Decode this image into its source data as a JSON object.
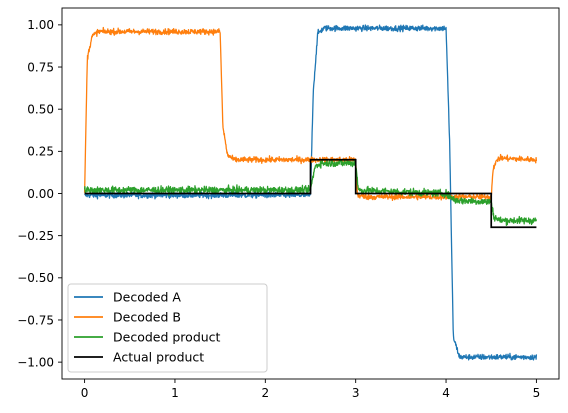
{
  "chart_data": {
    "type": "line",
    "title": "",
    "xlabel": "",
    "ylabel": "",
    "xlim": [
      -0.25,
      5.25
    ],
    "ylim": [
      -1.1,
      1.1
    ],
    "xticks": [
      0,
      1,
      2,
      3,
      4,
      5
    ],
    "xtick_labels": [
      "0",
      "1",
      "2",
      "3",
      "4",
      "5"
    ],
    "yticks": [
      1.0,
      0.75,
      0.5,
      0.25,
      0.0,
      -0.25,
      -0.5,
      -0.75,
      -1.0
    ],
    "ytick_labels": [
      "1.00",
      "0.75",
      "0.50",
      "0.25",
      "0.00",
      "−0.25",
      "−0.50",
      "−0.75",
      "−1.00"
    ],
    "grid": false,
    "legend_position": "lower-left",
    "series": [
      {
        "name": "Decoded A",
        "color": "#1f77b4",
        "noise": 0.012,
        "points": [
          [
            0,
            -0.01
          ],
          [
            2.5,
            -0.01
          ],
          [
            2.53,
            0.6
          ],
          [
            2.58,
            0.95
          ],
          [
            2.65,
            0.98
          ],
          [
            4.0,
            0.98
          ],
          [
            4.04,
            0.3
          ],
          [
            4.08,
            -0.85
          ],
          [
            4.15,
            -0.97
          ],
          [
            5.0,
            -0.97
          ]
        ]
      },
      {
        "name": "Decoded B",
        "color": "#ff7f0e",
        "noise": 0.012,
        "points": [
          [
            0,
            0.0
          ],
          [
            0.03,
            0.8
          ],
          [
            0.08,
            0.93
          ],
          [
            0.15,
            0.96
          ],
          [
            1.5,
            0.96
          ],
          [
            1.53,
            0.4
          ],
          [
            1.58,
            0.23
          ],
          [
            1.65,
            0.2
          ],
          [
            2.5,
            0.2
          ],
          [
            3.0,
            0.2
          ],
          [
            3.02,
            -0.01
          ],
          [
            3.1,
            -0.02
          ],
          [
            4.5,
            -0.02
          ],
          [
            4.52,
            0.15
          ],
          [
            4.58,
            0.21
          ],
          [
            5.0,
            0.2
          ]
        ]
      },
      {
        "name": "Decoded product",
        "color": "#2ca02c",
        "noise": 0.015,
        "points": [
          [
            0,
            0.02
          ],
          [
            2.5,
            0.02
          ],
          [
            2.55,
            0.16
          ],
          [
            2.62,
            0.18
          ],
          [
            3.0,
            0.18
          ],
          [
            3.03,
            0.02
          ],
          [
            3.5,
            0.01
          ],
          [
            4.0,
            0.0
          ],
          [
            4.1,
            -0.04
          ],
          [
            4.5,
            -0.05
          ],
          [
            4.53,
            -0.14
          ],
          [
            4.6,
            -0.16
          ],
          [
            5.0,
            -0.16
          ]
        ]
      },
      {
        "name": "Actual product",
        "color": "#000000",
        "noise": 0,
        "points": [
          [
            0,
            0
          ],
          [
            2.5,
            0
          ],
          [
            2.5,
            0.2
          ],
          [
            3.0,
            0.2
          ],
          [
            3.0,
            0
          ],
          [
            4.5,
            0
          ],
          [
            4.5,
            -0.2
          ],
          [
            5.0,
            -0.2
          ]
        ]
      }
    ]
  }
}
